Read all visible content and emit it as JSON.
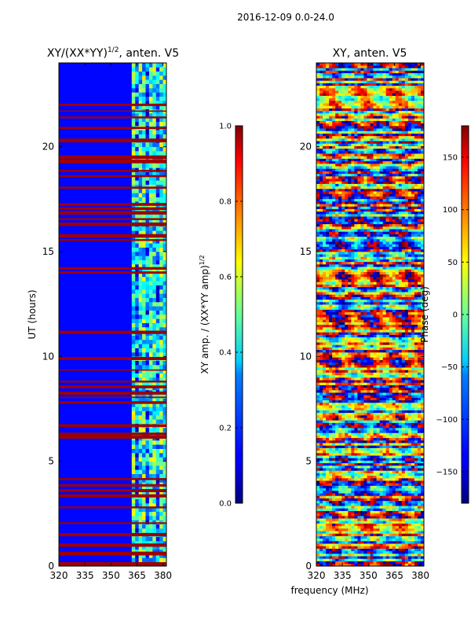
{
  "suptitle": "2016-12-09 0.0-24.0",
  "chart_data": [
    {
      "type": "heatmap",
      "title_prefix": "XY/(XX*YY)",
      "title_sup": "1/2",
      "title_suffix": ", anten. V5",
      "xlabel": "",
      "ylabel": "UT (hours)",
      "xlim": [
        320,
        382
      ],
      "ylim": [
        0,
        24
      ],
      "xticks": [
        320,
        335,
        350,
        365,
        380
      ],
      "yticks": [
        0,
        5,
        10,
        15,
        20
      ],
      "colormap": "jet",
      "colorbar": {
        "label_prefix": "XY amp. / (XX*YY amp)",
        "label_sup": "1/2",
        "range": [
          0.0,
          1.0
        ],
        "ticks": [
          0.0,
          0.2,
          0.4,
          0.6,
          0.8,
          1.0
        ],
        "ticklabels": [
          "0.0",
          "0.2",
          "0.4",
          "0.6",
          "0.8",
          "1.0"
        ]
      },
      "signal_band_mhz": [
        362,
        382
      ],
      "saturated_hours": [
        0.1,
        0.6,
        1.0,
        1.5,
        2.05,
        2.8,
        3.35,
        3.6,
        3.85,
        4.15,
        6.15,
        6.3,
        6.7,
        7.8,
        8.05,
        8.25,
        8.55,
        8.8,
        9.35,
        9.9,
        11.15,
        14.0,
        14.2,
        15.55,
        15.75,
        16.3,
        16.55,
        16.85,
        17.05,
        17.25,
        18.05,
        18.6,
        18.85,
        19.3,
        19.5,
        20.3,
        20.9,
        21.4,
        21.7,
        22.0
      ]
    },
    {
      "type": "heatmap",
      "title": "XY, anten. V5",
      "xlabel": "frequency (MHz)",
      "ylabel": "",
      "xlim": [
        320,
        382
      ],
      "ylim": [
        0,
        24
      ],
      "xticks": [
        320,
        335,
        350,
        365,
        380
      ],
      "yticks": [
        0,
        5,
        10,
        15,
        20
      ],
      "colormap": "jet",
      "colorbar": {
        "label": "Phase (deg)",
        "range": [
          -180,
          180
        ],
        "ticks": [
          -150,
          -100,
          -50,
          0,
          50,
          100,
          150
        ],
        "ticklabels": [
          "−150",
          "−100",
          "−50",
          "0",
          "50",
          "100",
          "150"
        ]
      }
    }
  ]
}
